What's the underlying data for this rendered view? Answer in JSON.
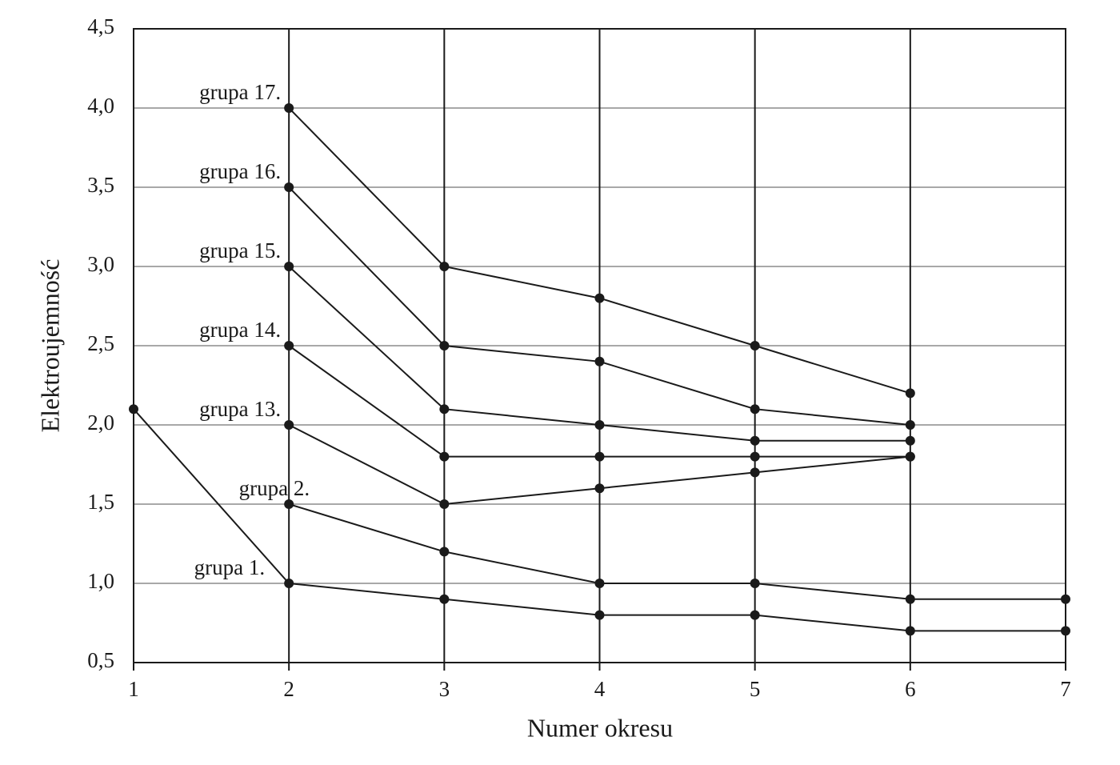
{
  "chart_data": {
    "type": "line",
    "x_label": "Numer okresu",
    "y_label": "Elektroujemność",
    "x": [
      1,
      2,
      3,
      4,
      5,
      6,
      7
    ],
    "series": [
      {
        "name": "grupa 1.",
        "color": "#1a1a1a",
        "values": [
          2.1,
          1.0,
          0.9,
          0.8,
          0.8,
          0.7,
          0.7
        ]
      },
      {
        "name": "grupa 2.",
        "color": "#1a1a1a",
        "values": [
          null,
          1.5,
          1.2,
          1.0,
          1.0,
          0.9,
          0.9
        ]
      },
      {
        "name": "grupa 13.",
        "color": "#1a1a1a",
        "values": [
          null,
          2.0,
          1.5,
          1.6,
          1.7,
          1.8,
          null
        ]
      },
      {
        "name": "grupa 14.",
        "color": "#1a1a1a",
        "values": [
          null,
          2.5,
          1.8,
          1.8,
          1.8,
          1.8,
          null
        ]
      },
      {
        "name": "grupa 15.",
        "color": "#1a1a1a",
        "values": [
          null,
          3.0,
          2.1,
          2.0,
          1.9,
          1.9,
          null
        ]
      },
      {
        "name": "grupa 16.",
        "color": "#1a1a1a",
        "values": [
          null,
          3.5,
          2.5,
          2.4,
          2.1,
          2.0,
          null
        ]
      },
      {
        "name": "grupa 17.",
        "color": "#1a1a1a",
        "values": [
          null,
          4.0,
          3.0,
          2.8,
          2.5,
          2.2,
          null
        ]
      }
    ],
    "xlim": [
      1,
      7
    ],
    "xticks": [
      1,
      2,
      3,
      4,
      5,
      6,
      7
    ],
    "ylim": [
      0.5,
      4.5
    ],
    "yticks": [
      {
        "value": 0.5,
        "label": "0,5"
      },
      {
        "value": 1.0,
        "label": "1,0"
      },
      {
        "value": 1.5,
        "label": "1,5"
      },
      {
        "value": 2.0,
        "label": "2,0"
      },
      {
        "value": 2.5,
        "label": "2,5"
      },
      {
        "value": 3.0,
        "label": "3,0"
      },
      {
        "value": 3.5,
        "label": "3,5"
      },
      {
        "value": 4.0,
        "label": "4,0"
      },
      {
        "value": 4.5,
        "label": "4,5"
      }
    ],
    "grid": true
  }
}
